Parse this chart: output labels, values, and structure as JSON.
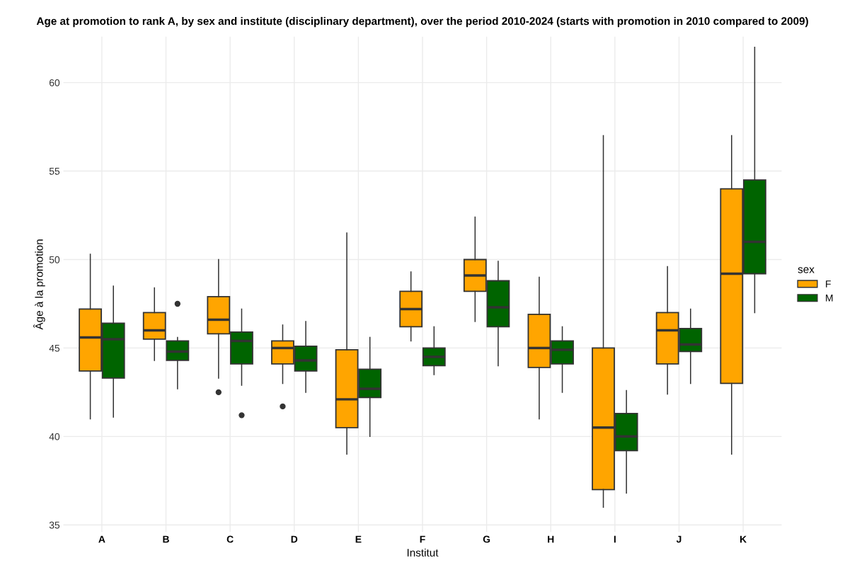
{
  "chart_data": {
    "type": "box",
    "title": "Age at promotion to rank A, by sex and institute (disciplinary department), over the period 2010-2024 (starts with promotion in 2010 compared to 2009)",
    "xlabel": "Institut",
    "ylabel": "Âge à la promotion",
    "legend_title": "sex",
    "categories": [
      "A",
      "B",
      "C",
      "D",
      "E",
      "F",
      "G",
      "H",
      "I",
      "J",
      "K"
    ],
    "series": [
      {
        "name": "F",
        "color": "#ffa500",
        "boxes": [
          {
            "low": 41.0,
            "q1": 43.7,
            "median": 45.6,
            "q3": 47.2,
            "high": 50.3
          },
          {
            "low": 44.3,
            "q1": 45.5,
            "median": 46.0,
            "q3": 47.0,
            "high": 48.4
          },
          {
            "low": 43.3,
            "q1": 45.8,
            "median": 46.6,
            "q3": 47.9,
            "high": 50.0,
            "outliers": [
              42.5
            ]
          },
          {
            "low": 43.0,
            "q1": 44.1,
            "median": 45.0,
            "q3": 45.4,
            "high": 46.3,
            "outliers": [
              41.7
            ]
          },
          {
            "low": 39.0,
            "q1": 40.5,
            "median": 42.1,
            "q3": 44.9,
            "high": 51.5
          },
          {
            "low": 45.4,
            "q1": 46.2,
            "median": 47.2,
            "q3": 48.2,
            "high": 49.3
          },
          {
            "low": 46.5,
            "q1": 48.2,
            "median": 49.1,
            "q3": 50.0,
            "high": 52.4
          },
          {
            "low": 41.0,
            "q1": 43.9,
            "median": 45.0,
            "q3": 46.9,
            "high": 49.0
          },
          {
            "low": 36.0,
            "q1": 37.0,
            "median": 40.5,
            "q3": 45.0,
            "high": 57.0
          },
          {
            "low": 42.4,
            "q1": 44.1,
            "median": 46.0,
            "q3": 47.0,
            "high": 49.6
          },
          {
            "low": 39.0,
            "q1": 43.0,
            "median": 49.2,
            "q3": 54.0,
            "high": 57.0
          }
        ]
      },
      {
        "name": "M",
        "color": "#006400",
        "boxes": [
          {
            "low": 41.1,
            "q1": 43.3,
            "median": 45.5,
            "q3": 46.4,
            "high": 48.5
          },
          {
            "low": 42.7,
            "q1": 44.3,
            "median": 44.8,
            "q3": 45.4,
            "high": 45.6,
            "outliers": [
              47.5
            ]
          },
          {
            "low": 42.9,
            "q1": 44.1,
            "median": 45.4,
            "q3": 45.9,
            "high": 47.2,
            "outliers": [
              41.2
            ]
          },
          {
            "low": 42.5,
            "q1": 43.7,
            "median": 44.3,
            "q3": 45.1,
            "high": 46.5
          },
          {
            "low": 40.0,
            "q1": 42.2,
            "median": 42.7,
            "q3": 43.8,
            "high": 45.6
          },
          {
            "low": 43.5,
            "q1": 44.0,
            "median": 44.5,
            "q3": 45.0,
            "high": 46.2
          },
          {
            "low": 44.0,
            "q1": 46.2,
            "median": 47.3,
            "q3": 48.8,
            "high": 49.9
          },
          {
            "low": 42.5,
            "q1": 44.1,
            "median": 44.9,
            "q3": 45.4,
            "high": 46.2
          },
          {
            "low": 36.8,
            "q1": 39.2,
            "median": 40.0,
            "q3": 41.3,
            "high": 42.6
          },
          {
            "low": 43.0,
            "q1": 44.8,
            "median": 45.2,
            "q3": 46.1,
            "high": 47.2
          },
          {
            "low": 47.0,
            "q1": 49.2,
            "median": 51.0,
            "q3": 54.5,
            "high": 62.0
          }
        ]
      }
    ],
    "ylim": [
      34.6,
      62.6
    ],
    "yticks": [
      35,
      40,
      45,
      50,
      55,
      60
    ],
    "grid": true,
    "legend": "right"
  }
}
